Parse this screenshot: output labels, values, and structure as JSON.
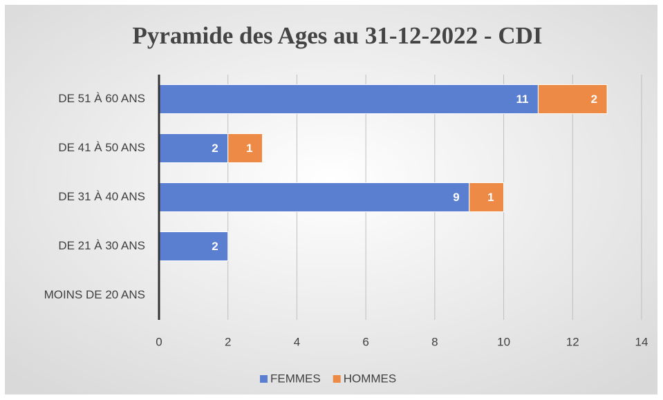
{
  "chart_data": {
    "type": "bar",
    "orientation": "horizontal",
    "stacked": true,
    "title": "Pyramide des Ages au 31-12-2022 - CDI",
    "categories": [
      "DE 51 À 60 ANS",
      "DE 41 À 50 ANS",
      "DE 31 À 40 ANS",
      "DE 21 À 30 ANS",
      "MOINS DE 20 ANS"
    ],
    "series": [
      {
        "name": "FEMMES",
        "color": "#5b7fd0",
        "values": [
          11,
          2,
          9,
          2,
          null
        ]
      },
      {
        "name": "HOMMES",
        "color": "#ed8a46",
        "values": [
          2,
          1,
          1,
          null,
          null
        ]
      }
    ],
    "xlim": [
      0,
      14
    ],
    "xticks": [
      0,
      2,
      4,
      6,
      8,
      10,
      12,
      14
    ],
    "grid": true,
    "legend": "bottom"
  }
}
